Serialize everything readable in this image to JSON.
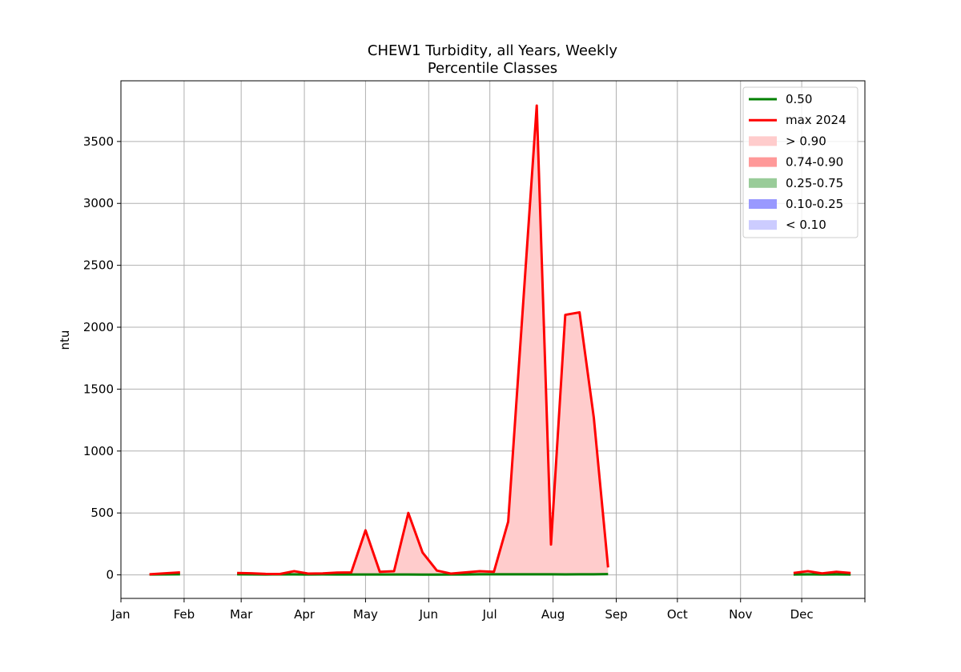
{
  "chart_data": {
    "type": "area",
    "title": "CHEW1 Turbidity, all Years, Weekly",
    "subtitle": "Percentile Classes",
    "xlabel": "",
    "ylabel": "ntu",
    "grid": true,
    "legend_position": "top-right",
    "xlim": [
      0,
      365
    ],
    "ylim": [
      -190,
      3990
    ],
    "x_ticks": [
      {
        "pos": 0,
        "label": "Jan"
      },
      {
        "pos": 31,
        "label": "Feb"
      },
      {
        "pos": 59,
        "label": "Mar"
      },
      {
        "pos": 90,
        "label": "Apr"
      },
      {
        "pos": 120,
        "label": "May"
      },
      {
        "pos": 151,
        "label": "Jun"
      },
      {
        "pos": 181,
        "label": "Jul"
      },
      {
        "pos": 212,
        "label": "Aug"
      },
      {
        "pos": 243,
        "label": "Sep"
      },
      {
        "pos": 273,
        "label": "Oct"
      },
      {
        "pos": 304,
        "label": "Nov"
      },
      {
        "pos": 334,
        "label": "Dec"
      },
      {
        "pos": 365,
        "label": ""
      }
    ],
    "y_ticks": [
      0,
      500,
      1000,
      1500,
      2000,
      2500,
      3000,
      3500
    ],
    "legend": [
      "0.50",
      "max 2024",
      "> 0.90",
      "0.74-0.90",
      "0.25-0.75",
      "0.10-0.25",
      "< 0.10"
    ],
    "series": [
      {
        "name": "0.50",
        "color": "#008000",
        "segments": [
          [
            [
              14,
              3
            ],
            [
              29,
              5
            ]
          ],
          [
            [
              57,
              5
            ],
            [
              64,
              4
            ],
            [
              71,
              3
            ],
            [
              78,
              5
            ],
            [
              85,
              4
            ],
            [
              92,
              3
            ],
            [
              99,
              4
            ],
            [
              106,
              3
            ],
            [
              113,
              3
            ],
            [
              120,
              3
            ],
            [
              127,
              3
            ],
            [
              134,
              3
            ],
            [
              141,
              3
            ],
            [
              148,
              2
            ],
            [
              155,
              2
            ],
            [
              162,
              3
            ],
            [
              169,
              3
            ],
            [
              176,
              5
            ],
            [
              183,
              5
            ],
            [
              190,
              5
            ],
            [
              197,
              5
            ],
            [
              204,
              5
            ],
            [
              211,
              5
            ],
            [
              218,
              4
            ],
            [
              225,
              5
            ],
            [
              232,
              5
            ],
            [
              239,
              6
            ]
          ],
          [
            [
              330,
              3
            ],
            [
              337,
              4
            ],
            [
              344,
              3
            ],
            [
              351,
              4
            ],
            [
              358,
              3
            ]
          ]
        ]
      },
      {
        "name": "max 2024",
        "color": "#ff0000",
        "segments": [
          [
            [
              14,
              5
            ],
            [
              21,
              12
            ],
            [
              29,
              20
            ]
          ],
          [
            [
              57,
              15
            ],
            [
              64,
              13
            ],
            [
              71,
              8
            ],
            [
              78,
              7
            ],
            [
              85,
              30
            ],
            [
              92,
              10
            ],
            [
              99,
              12
            ],
            [
              106,
              18
            ],
            [
              113,
              20
            ],
            [
              120,
              360
            ],
            [
              127,
              25
            ],
            [
              134,
              30
            ],
            [
              141,
              500
            ],
            [
              148,
              180
            ],
            [
              155,
              35
            ],
            [
              162,
              10
            ],
            [
              169,
              20
            ],
            [
              176,
              30
            ],
            [
              183,
              25
            ],
            [
              190,
              430
            ],
            [
              204,
              3790
            ],
            [
              211,
              245
            ],
            [
              218,
              2100
            ],
            [
              225,
              2120
            ],
            [
              232,
              1270
            ],
            [
              239,
              60
            ]
          ],
          [
            [
              330,
              15
            ],
            [
              337,
              30
            ],
            [
              344,
              12
            ],
            [
              351,
              25
            ],
            [
              358,
              15
            ]
          ]
        ]
      }
    ],
    "bands": [
      {
        "name": "> 0.90",
        "color": "#ffcccc",
        "lower": "0.50",
        "upper": "max 2024"
      },
      {
        "name": "0.74-0.90",
        "color": "#ff9999",
        "lower": null,
        "upper": null
      },
      {
        "name": "0.25-0.75",
        "color": "#99cc99",
        "lower": null,
        "upper": null
      },
      {
        "name": "0.10-0.25",
        "color": "#9999ff",
        "lower": null,
        "upper": null
      },
      {
        "name": "< 0.10",
        "color": "#ccccff",
        "lower": null,
        "upper": null
      }
    ]
  }
}
